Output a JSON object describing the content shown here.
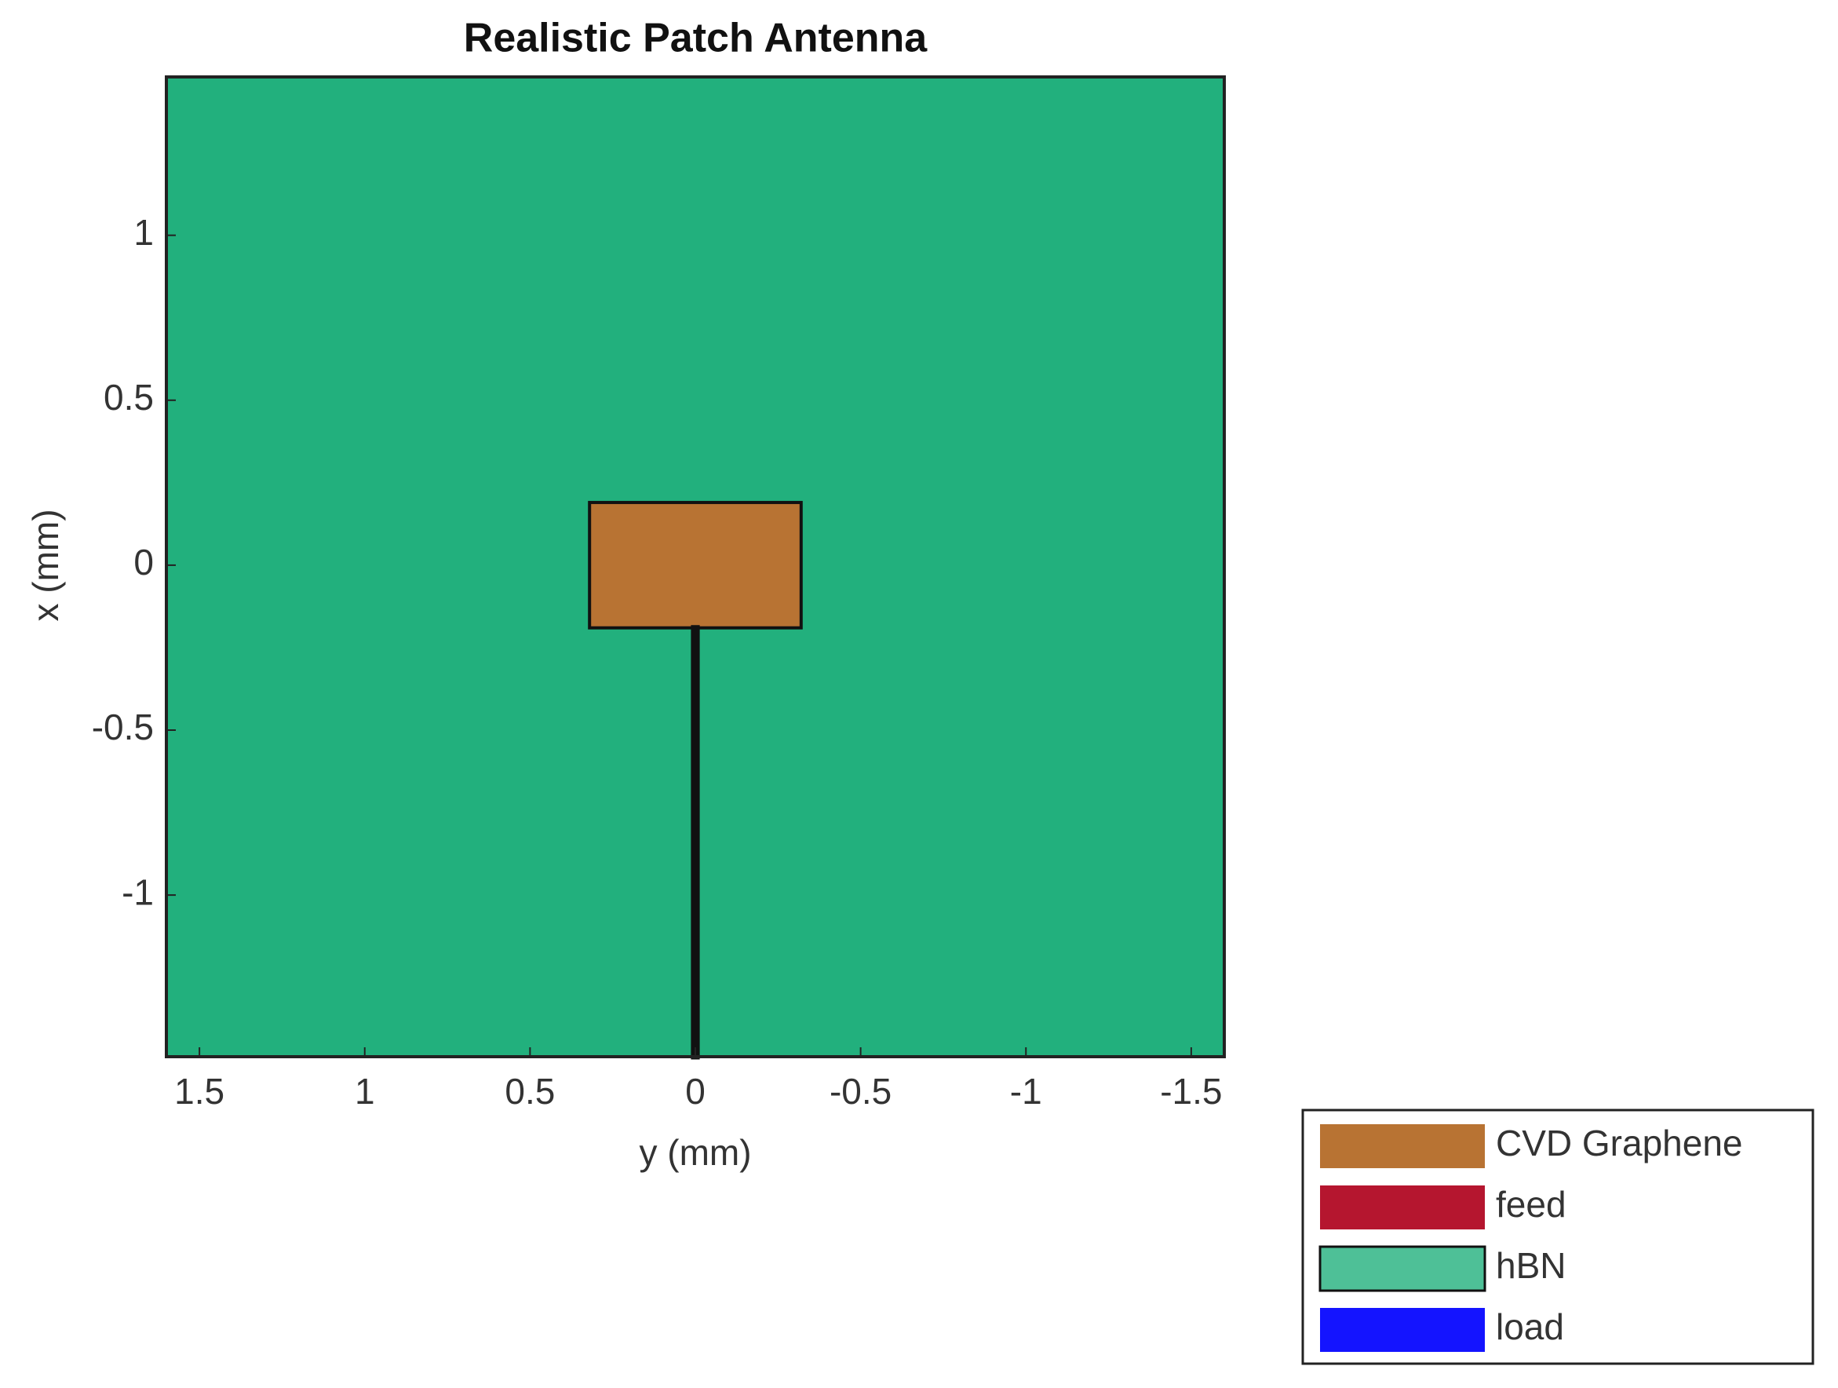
{
  "chart_data": {
    "type": "layout",
    "title": "Realistic Patch Antenna",
    "xlabel": "y (mm)",
    "ylabel": "x (mm)",
    "xlim": [
      1.6,
      -1.6
    ],
    "ylim": [
      -1.49,
      1.48
    ],
    "xticks": [
      1.5,
      1,
      0.5,
      0,
      -0.5,
      -1,
      -1.5
    ],
    "yticks": [
      -1,
      -0.5,
      0,
      0.5,
      1
    ],
    "series": [
      {
        "name": "CVD Graphene",
        "color": "#b87333",
        "x": [
          0.32,
          -0.32
        ],
        "y": [
          -0.19,
          0.19
        ]
      },
      {
        "name": "feed",
        "color": "#b5162f",
        "x": [
          0.005,
          -0.005
        ],
        "y": [
          -1.49,
          -0.19
        ]
      },
      {
        "name": "hBN",
        "color": "#22b07d",
        "x": [
          1.6,
          -1.6
        ],
        "y": [
          -1.49,
          1.48
        ]
      },
      {
        "name": "load",
        "color": "#1414ff"
      }
    ]
  }
}
